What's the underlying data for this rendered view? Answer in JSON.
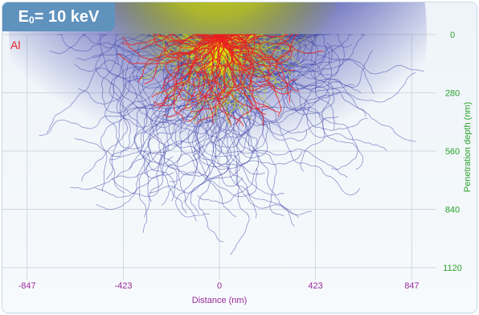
{
  "header": {
    "base": "E",
    "subscript": "0",
    "rest": " = 10 keV"
  },
  "material_label": "Al",
  "colors": {
    "background_trajectories": "#3b3fa8",
    "mid_trajectories": "#c8d400",
    "core_trajectories": "#f2f200",
    "backscattered_trajectories": "#e82020",
    "axis_text": "#9a2a9a",
    "depth_text": "#2aa22a"
  },
  "chart_data": {
    "type": "scatter",
    "title": "",
    "xlabel": "Distance (nm)",
    "ylabel": "Penetration depth (nm)",
    "xlim": [
      -920,
      920
    ],
    "ylim": [
      1120,
      0
    ],
    "x_ticks": [
      -847,
      -423,
      0,
      423,
      847
    ],
    "y_ticks": [
      0,
      280,
      560,
      840,
      1120
    ],
    "x_tick_labels": [
      "-847",
      "-423",
      "0",
      "423",
      "847"
    ],
    "y_tick_labels": [
      "0",
      "280",
      "560",
      "840",
      "1120"
    ],
    "grid": true,
    "legend": "none"
  }
}
